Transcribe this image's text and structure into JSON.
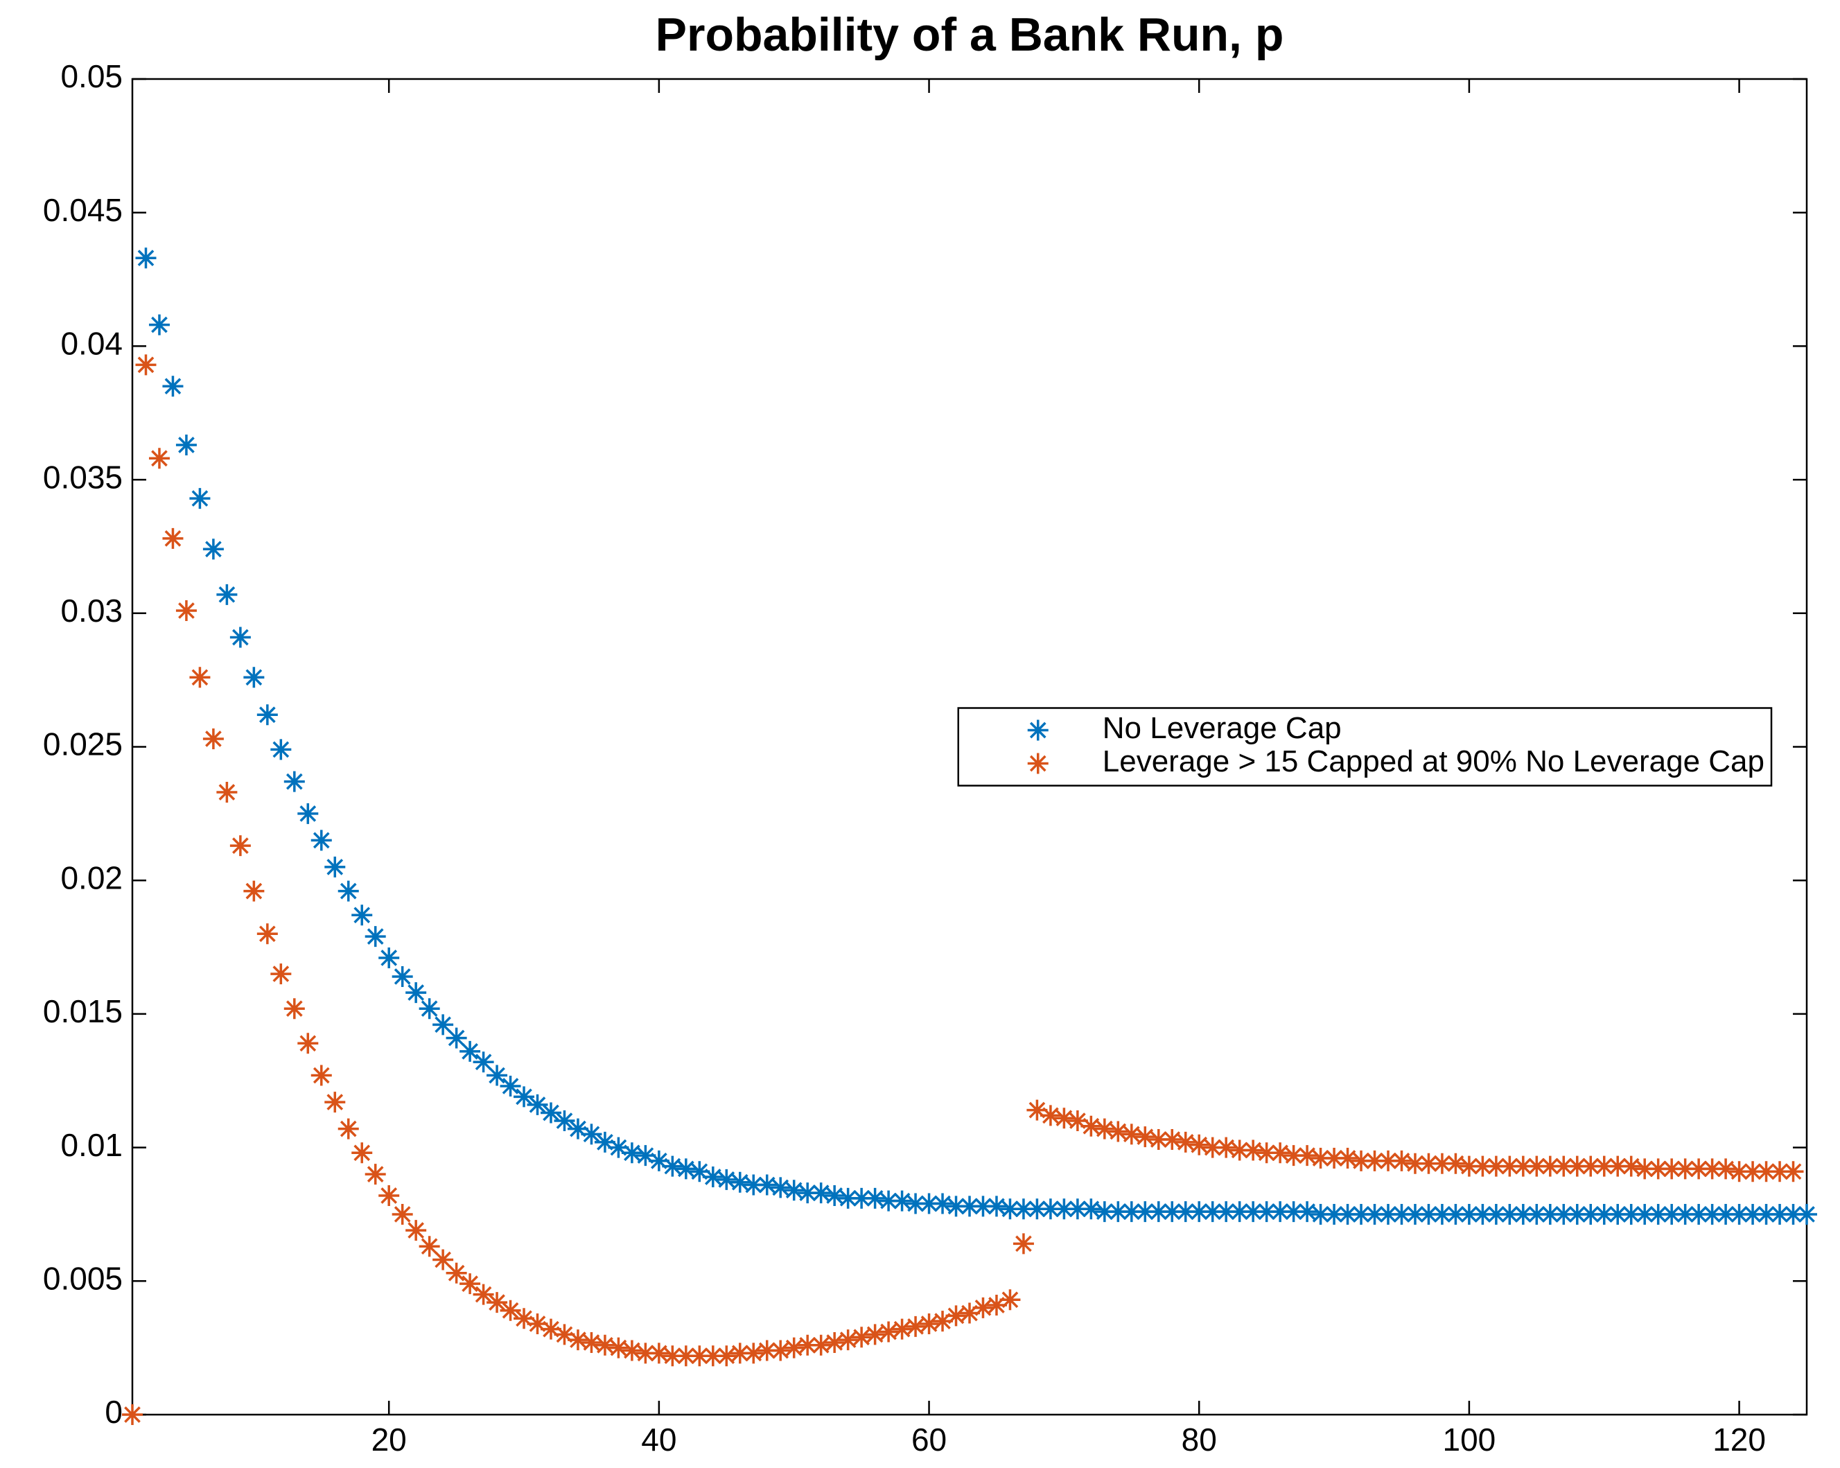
{
  "chart_data": {
    "type": "scatter",
    "title": "Probability of a Bank Run, p",
    "x": [
      1,
      2,
      3,
      4,
      5,
      6,
      7,
      8,
      9,
      10,
      11,
      12,
      13,
      14,
      15,
      16,
      17,
      18,
      19,
      20,
      21,
      22,
      23,
      24,
      25,
      26,
      27,
      28,
      29,
      30,
      31,
      32,
      33,
      34,
      35,
      36,
      37,
      38,
      39,
      40,
      41,
      42,
      43,
      44,
      45,
      46,
      47,
      48,
      49,
      50,
      51,
      52,
      53,
      54,
      55,
      56,
      57,
      58,
      59,
      60,
      61,
      62,
      63,
      64,
      65,
      66,
      67,
      68,
      69,
      70,
      71,
      72,
      73,
      74,
      75,
      76,
      77,
      78,
      79,
      80,
      81,
      82,
      83,
      84,
      85,
      86,
      87,
      88,
      89,
      90,
      91,
      92,
      93,
      94,
      95,
      96,
      97,
      98,
      99,
      100,
      101,
      102,
      103,
      104,
      105,
      106,
      107,
      108,
      109,
      110,
      111,
      112,
      113,
      114,
      115,
      116,
      117,
      118,
      119,
      120,
      121,
      122,
      123,
      124,
      125
    ],
    "series": [
      {
        "name": "No Leverage Cap",
        "color": "#0072BD",
        "values": [
          null,
          0.0433,
          0.0408,
          0.0385,
          0.0363,
          0.0343,
          0.0324,
          0.0307,
          0.0291,
          0.0276,
          0.0262,
          0.0249,
          0.0237,
          0.0225,
          0.0215,
          0.0205,
          0.0196,
          0.0187,
          0.0179,
          0.0171,
          0.0164,
          0.0158,
          0.0152,
          0.0146,
          0.0141,
          0.0136,
          0.0132,
          0.0127,
          0.0123,
          0.0119,
          0.0116,
          0.0113,
          0.011,
          0.0107,
          0.0105,
          0.0102,
          0.01,
          0.0098,
          0.0097,
          0.0095,
          0.0093,
          0.0092,
          0.0091,
          0.0089,
          0.0088,
          0.0087,
          0.0086,
          0.0086,
          0.0085,
          0.0084,
          0.0083,
          0.0083,
          0.0082,
          0.0081,
          0.0081,
          0.0081,
          0.008,
          0.008,
          0.0079,
          0.0079,
          0.0079,
          0.0078,
          0.0078,
          0.0078,
          0.0078,
          0.0077,
          0.0077,
          0.0077,
          0.0077,
          0.0077,
          0.0077,
          0.0077,
          0.0076,
          0.0076,
          0.0076,
          0.0076,
          0.0076,
          0.0076,
          0.0076,
          0.0076,
          0.0076,
          0.0076,
          0.0076,
          0.0076,
          0.0076,
          0.0076,
          0.0076,
          0.0076,
          0.0075,
          0.0075,
          0.0075,
          0.0075,
          0.0075,
          0.0075,
          0.0075,
          0.0075,
          0.0075,
          0.0075,
          0.0075,
          0.0075,
          0.0075,
          0.0075,
          0.0075,
          0.0075,
          0.0075,
          0.0075,
          0.0075,
          0.0075,
          0.0075,
          0.0075,
          0.0075,
          0.0075,
          0.0075,
          0.0075,
          0.0075,
          0.0075,
          0.0075,
          0.0075,
          0.0075,
          0.0075,
          0.0075,
          0.0075,
          0.0075,
          0.0075,
          0.0075
        ]
      },
      {
        "name": "Leverage > 15 Capped at 90% No Leverage Cap",
        "color": "#D95319",
        "values": [
          0,
          0.0393,
          0.0358,
          0.0328,
          0.0301,
          0.0276,
          0.0253,
          0.0233,
          0.0213,
          0.0196,
          0.018,
          0.0165,
          0.0152,
          0.0139,
          0.0127,
          0.0117,
          0.0107,
          0.0098,
          0.009,
          0.0082,
          0.0075,
          0.0069,
          0.0063,
          0.0058,
          0.0053,
          0.0049,
          0.0045,
          0.0042,
          0.0039,
          0.0036,
          0.0034,
          0.0032,
          0.003,
          0.0028,
          0.0027,
          0.0026,
          0.0025,
          0.0024,
          0.0023,
          0.0023,
          0.0022,
          0.0022,
          0.0022,
          0.0022,
          0.0022,
          0.0023,
          0.0023,
          0.0024,
          0.0024,
          0.0025,
          0.0026,
          0.0026,
          0.0027,
          0.0028,
          0.0029,
          0.003,
          0.0031,
          0.0032,
          0.0033,
          0.0034,
          0.0035,
          0.0037,
          0.0038,
          0.004,
          0.0041,
          0.0043,
          0.0064,
          0.0114,
          0.0112,
          0.0111,
          0.011,
          0.0108,
          0.0107,
          0.0106,
          0.0105,
          0.0104,
          0.0103,
          0.0103,
          0.0102,
          0.0101,
          0.01,
          0.01,
          0.0099,
          0.0099,
          0.0098,
          0.0098,
          0.0097,
          0.0097,
          0.0096,
          0.0096,
          0.0096,
          0.0095,
          0.0095,
          0.0095,
          0.0095,
          0.0094,
          0.0094,
          0.0094,
          0.0094,
          0.0093,
          0.0093,
          0.0093,
          0.0093,
          0.0093,
          0.0093,
          0.0093,
          0.0093,
          0.0093,
          0.0093,
          0.0093,
          0.0093,
          0.0093,
          0.0092,
          0.0092,
          0.0092,
          0.0092,
          0.0092,
          0.0092,
          0.0092,
          0.0091,
          0.0091,
          0.0091,
          0.0091,
          0.0091
        ]
      }
    ],
    "xlim": [
      1,
      125
    ],
    "xticks": [
      20,
      40,
      60,
      80,
      100,
      120
    ],
    "ylim": [
      0,
      0.05
    ],
    "yticks": [
      0,
      0.005,
      0.01,
      0.015,
      0.02,
      0.025,
      0.03,
      0.035,
      0.04,
      0.045,
      0.05
    ],
    "grid": false,
    "legend": "east"
  }
}
